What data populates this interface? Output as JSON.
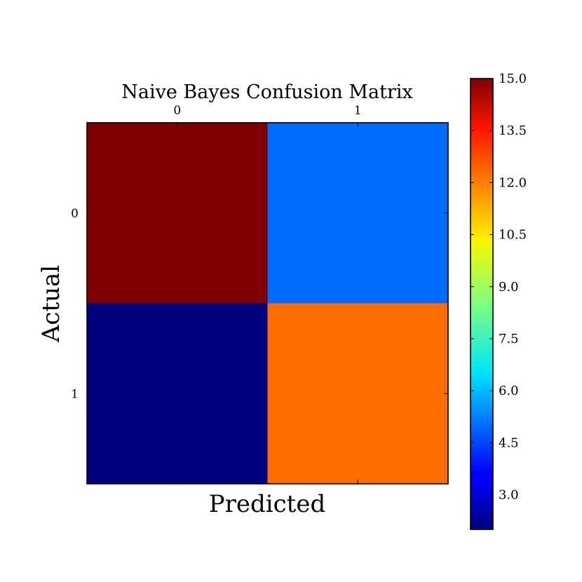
{
  "chart_data": {
    "type": "heatmap",
    "title": "Naive Bayes Confusion Matrix",
    "xlabel": "Predicted",
    "ylabel": "Actual",
    "x_categories": [
      "0",
      "1"
    ],
    "y_categories": [
      "0",
      "1"
    ],
    "matrix": [
      [
        15,
        5
      ],
      [
        2,
        12
      ]
    ],
    "colormap": "jet",
    "colorbar": {
      "vmin": 2,
      "vmax": 15,
      "ticks": [
        3.0,
        4.5,
        6.0,
        7.5,
        9.0,
        10.5,
        12.0,
        13.5,
        15.0
      ],
      "tick_labels": [
        "3.0",
        "4.5",
        "6.0",
        "7.5",
        "9.0",
        "10.5",
        "12.0",
        "13.5",
        "15.0"
      ]
    },
    "x_tick_position": "top",
    "grid": false
  }
}
